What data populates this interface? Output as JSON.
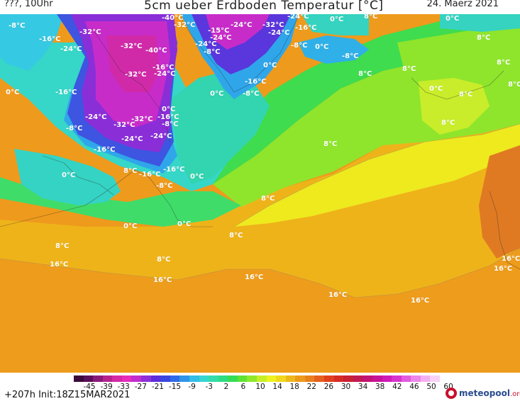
{
  "header": {
    "location": "???, 10Uhr",
    "title": "5cm ueber Erdboden Temperatur [°C]",
    "date": "24. Maerz 2021"
  },
  "map": {
    "labels": [
      "-8°C",
      "-16°C",
      "-24°C",
      "-32°C",
      "-32°C",
      "-40°C",
      "-40°C",
      "-32°C",
      "-15°C",
      "-24°C",
      "-24°C",
      "-32°C",
      "-24°C",
      "-16°C",
      "-24°C",
      "-24°C",
      "-8°C",
      "-8°C",
      "0°C",
      "0°C",
      "0°C",
      "8°C",
      "-8°C",
      "8°C",
      "8°C",
      "8°C",
      "8°C",
      "0°C",
      "-16°C",
      "-32°C",
      "-24°C",
      "0°C",
      "-16°C",
      "0°C",
      "-8°C",
      "-16°C",
      "-24°C",
      "-32°C",
      "-32°C",
      "-24°C",
      "0°C",
      "-16°C",
      "-8°C",
      "8°C",
      "0°C",
      "8°C",
      "-8°C",
      "-16°C",
      "-24°C",
      "-16°C",
      "8°C",
      "-16°C",
      "0°C",
      "8°C",
      "0°C",
      "-8°C",
      "8°C",
      "8°C",
      "0°C",
      "0°C",
      "8°C",
      "8°C",
      "16°C",
      "8°C",
      "16°C",
      "16°C",
      "16°C",
      "16°C",
      "16°C",
      "16°C"
    ]
  },
  "colorbar": {
    "ticks": [
      "-45",
      "-39",
      "-33",
      "-27",
      "-21",
      "-15",
      "-9",
      "-3",
      "2",
      "6",
      "10",
      "14",
      "18",
      "22",
      "26",
      "30",
      "34",
      "38",
      "42",
      "46",
      "50",
      "60"
    ],
    "colors": [
      "#3a0a3a",
      "#5a0f5a",
      "#8a1a7a",
      "#b8228e",
      "#d629a5",
      "#e62dbb",
      "#c32dcf",
      "#8f2fd8",
      "#5a2ddd",
      "#3a46e0",
      "#2f6be6",
      "#2f95ea",
      "#33bde8",
      "#36d6d0",
      "#33dcab",
      "#2edc82",
      "#35dd55",
      "#5fe234",
      "#90e82c",
      "#c7ef27",
      "#eef21f",
      "#f1d81c",
      "#eeb81c",
      "#ec9a1c",
      "#e9801c",
      "#e5601c",
      "#e0401c",
      "#d62a24",
      "#c92034",
      "#c11a52",
      "#c21474",
      "#c81496",
      "#d01ab7",
      "#d833cf",
      "#e35ade",
      "#ec86ea",
      "#f3b0f1",
      "#f8d2f6"
    ]
  },
  "footer": {
    "init": "+207h  Init:18Z15MAR2021",
    "logo_name": "meteopool",
    "logo_tld": ".org"
  }
}
